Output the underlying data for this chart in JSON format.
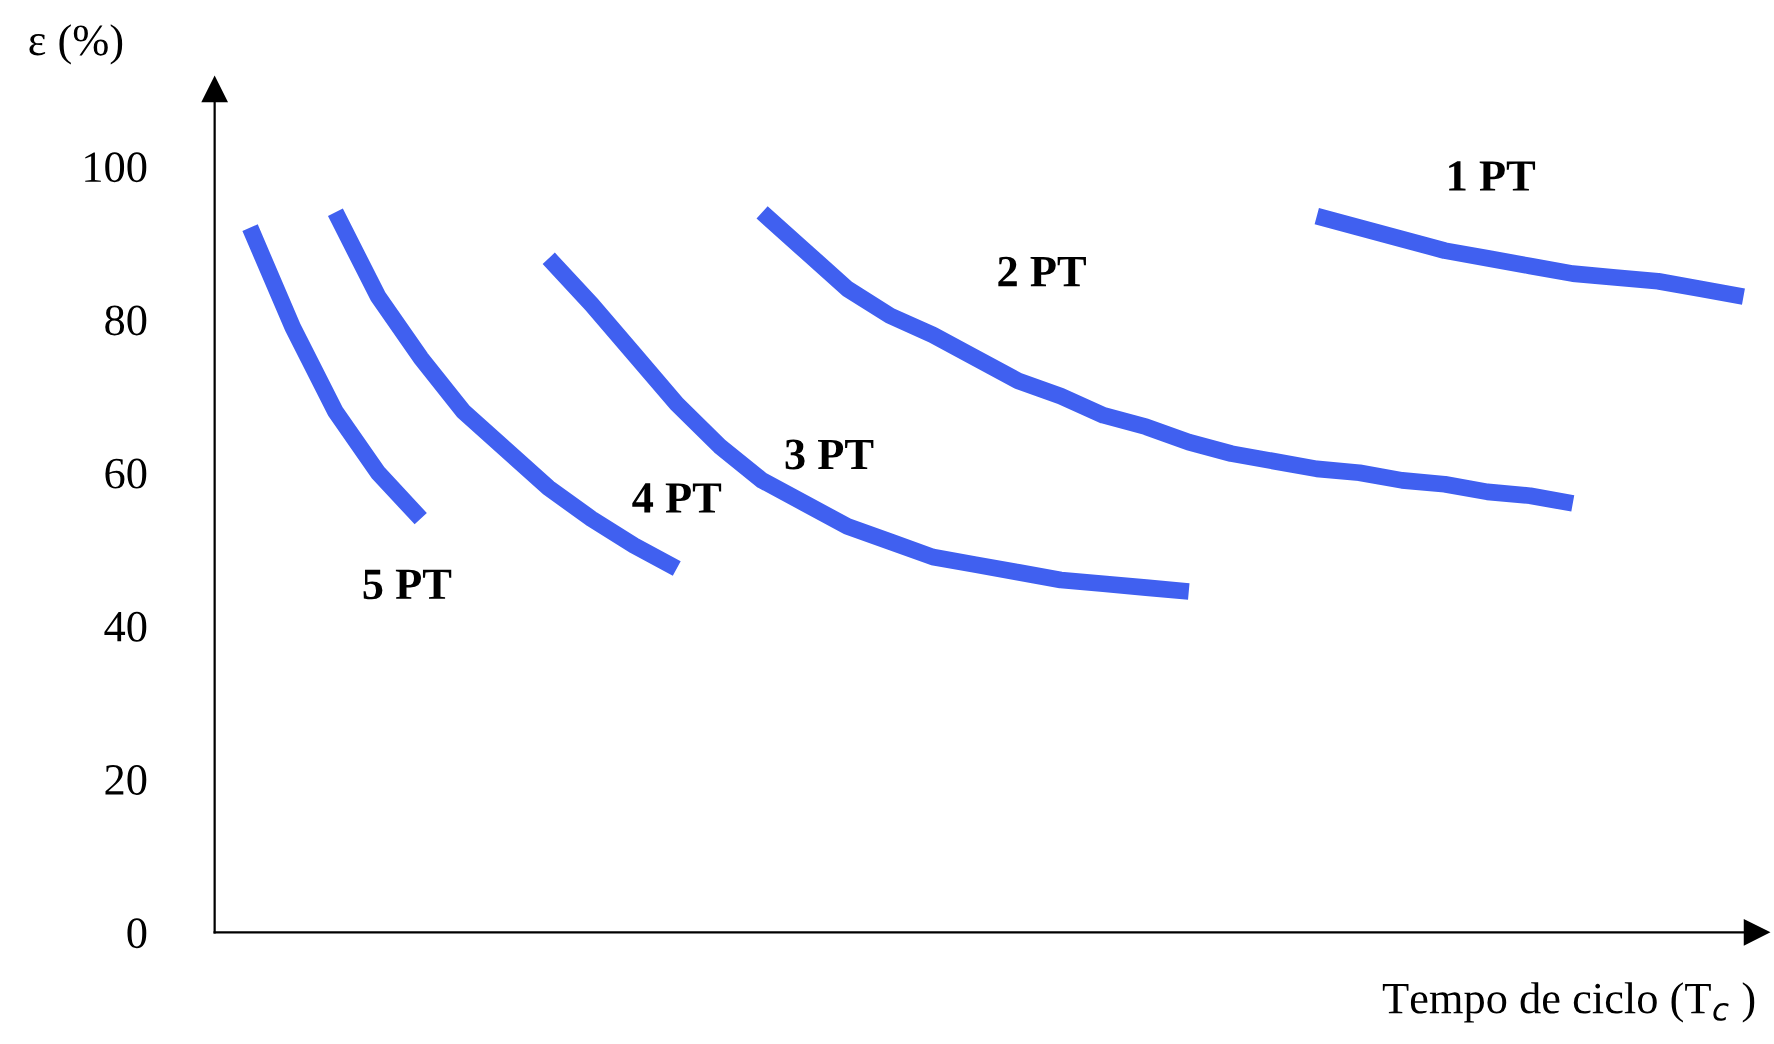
{
  "chart_data": {
    "type": "line",
    "xlabel": "Tempo de ciclo (T$_{c}$ )",
    "ylabel": "ε (%)",
    "categories": [
      null,
      null,
      null,
      null,
      null,
      null,
      null,
      null,
      null,
      null,
      null,
      null,
      null,
      null,
      null,
      null,
      null,
      null,
      null,
      null,
      null,
      null,
      null,
      null,
      null,
      null,
      null,
      null,
      null,
      null,
      null,
      null,
      null,
      null,
      null,
      null
    ],
    "ylim": [
      0,
      110
    ],
    "yticks": [
      0,
      20,
      40,
      60,
      80,
      100
    ],
    "tick_labels": "y",
    "grid": false,
    "legend": false,
    "marker": "none",
    "line_style": "solid",
    "series": [
      {
        "name": "5 PT",
        "color": "#4060f0",
        "values": [
          92,
          79,
          68,
          60,
          54,
          null,
          null,
          null,
          null,
          null,
          null,
          null,
          null,
          null,
          null,
          null,
          null,
          null,
          null,
          null,
          null,
          null,
          null,
          null,
          null,
          null,
          null,
          null,
          null,
          null,
          null,
          null,
          null,
          null,
          null,
          null
        ]
      },
      {
        "name": "4 PT",
        "color": "#4060f0",
        "values": [
          null,
          null,
          94,
          83,
          75,
          68,
          63,
          58,
          54,
          50.5,
          47.5,
          null,
          null,
          null,
          null,
          null,
          null,
          null,
          null,
          null,
          null,
          null,
          null,
          null,
          null,
          null,
          null,
          null,
          null,
          null,
          null,
          null,
          null,
          null,
          null,
          null
        ]
      },
      {
        "name": "3 PT",
        "color": "#4060f0",
        "values": [
          null,
          null,
          null,
          null,
          null,
          null,
          null,
          88,
          82,
          75.5,
          69,
          63.5,
          59,
          56,
          53,
          51,
          49,
          48,
          47,
          46,
          45.5,
          45,
          44.5,
          null,
          null,
          null,
          null,
          null,
          null,
          null,
          null,
          null,
          null,
          null,
          null,
          null
        ]
      },
      {
        "name": "2 PT",
        "color": "#4060f0",
        "values": [
          null,
          null,
          null,
          null,
          null,
          null,
          null,
          null,
          null,
          null,
          null,
          null,
          94,
          89,
          84,
          80.5,
          78,
          75,
          72,
          70,
          67.5,
          66,
          64,
          62.5,
          61.5,
          60.5,
          60,
          59,
          58.5,
          57.5,
          57,
          56,
          null,
          null,
          null,
          null
        ]
      },
      {
        "name": "1 PT",
        "color": "#4060f0",
        "values": [
          null,
          null,
          null,
          null,
          null,
          null,
          null,
          null,
          null,
          null,
          null,
          null,
          null,
          null,
          null,
          null,
          null,
          null,
          null,
          null,
          null,
          null,
          null,
          null,
          null,
          93.5,
          92,
          90.5,
          89,
          88,
          87,
          86,
          85.5,
          85,
          84,
          83
        ]
      }
    ]
  }
}
